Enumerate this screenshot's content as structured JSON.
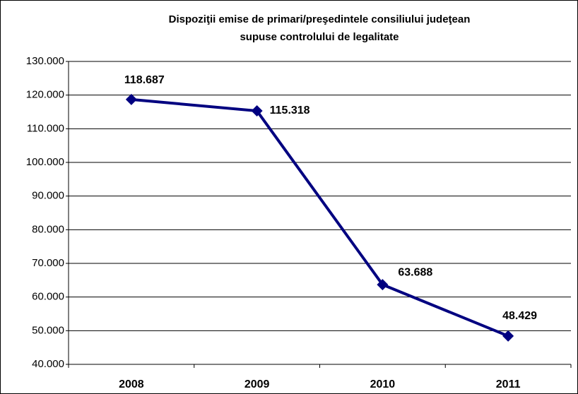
{
  "chart_data": {
    "type": "line",
    "title": [
      "Dispoziţii emise de primari/preşedintele consiliului judeţean",
      "supuse controlului de legalitate"
    ],
    "categories": [
      "2008",
      "2009",
      "2010",
      "2011"
    ],
    "series": [
      {
        "name": "Dispoziţii",
        "color": "#000080",
        "values": [
          118687,
          115318,
          63688,
          48429
        ],
        "value_labels": [
          "118.687",
          "115.318",
          "63.688",
          "48.429"
        ]
      }
    ],
    "ylim": [
      40000,
      130000
    ],
    "yticks": [
      {
        "value": 40000,
        "label": "40.000"
      },
      {
        "value": 50000,
        "label": "50.000"
      },
      {
        "value": 60000,
        "label": "60.000"
      },
      {
        "value": 70000,
        "label": "70.000"
      },
      {
        "value": 80000,
        "label": "80.000"
      },
      {
        "value": 90000,
        "label": "90.000"
      },
      {
        "value": 100000,
        "label": "100.000"
      },
      {
        "value": 110000,
        "label": "110.000"
      },
      {
        "value": 120000,
        "label": "120.000"
      },
      {
        "value": 130000,
        "label": "130.000"
      }
    ],
    "grid": true
  }
}
